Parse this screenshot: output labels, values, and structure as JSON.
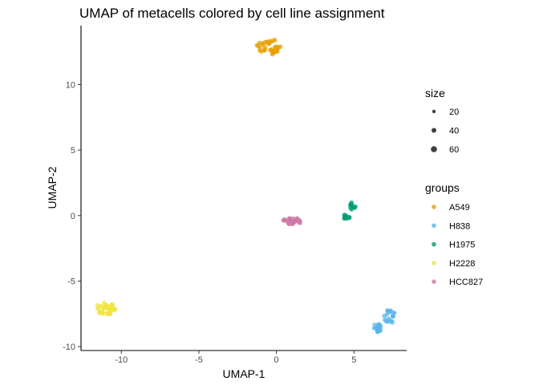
{
  "chart_data": {
    "type": "scatter",
    "title": "UMAP of metacells colored by cell line assignment",
    "xlabel": "UMAP-1",
    "ylabel": "UMAP-2",
    "xlim": [
      -12.6,
      8.4
    ],
    "ylim": [
      -10.3,
      14.5
    ],
    "x_ticks": [
      -10,
      -5,
      0,
      5
    ],
    "y_ticks": [
      -10,
      -5,
      0,
      5,
      10
    ],
    "grid": false,
    "legend_placement": "right",
    "size_legend": {
      "title": "size",
      "values": [
        20,
        40,
        60
      ]
    },
    "group_legend": {
      "title": "groups"
    },
    "series": [
      {
        "name": "A549",
        "color": "#E69F00",
        "clusters": [
          {
            "cx": -0.5,
            "cy": 12.9,
            "rx": 0.9,
            "ry": 0.6,
            "n": 34
          }
        ]
      },
      {
        "name": "H838",
        "color": "#56B4E9",
        "clusters": [
          {
            "cx": 7.3,
            "cy": -7.7,
            "rx": 0.4,
            "ry": 0.55,
            "n": 16
          },
          {
            "cx": 6.6,
            "cy": -8.6,
            "rx": 0.45,
            "ry": 0.35,
            "n": 16
          }
        ]
      },
      {
        "name": "H1975",
        "color": "#009E73",
        "clusters": [
          {
            "cx": 4.9,
            "cy": 0.7,
            "rx": 0.22,
            "ry": 0.3,
            "n": 10
          },
          {
            "cx": 4.5,
            "cy": -0.1,
            "rx": 0.28,
            "ry": 0.15,
            "n": 10
          }
        ]
      },
      {
        "name": "H2228",
        "color": "#F0E442",
        "clusters": [
          {
            "cx": -11.0,
            "cy": -7.1,
            "rx": 0.65,
            "ry": 0.5,
            "n": 38
          }
        ]
      },
      {
        "name": "HCC827",
        "color": "#CC79A7",
        "clusters": [
          {
            "cx": 1.0,
            "cy": -0.4,
            "rx": 0.6,
            "ry": 0.28,
            "n": 28
          }
        ]
      }
    ]
  }
}
